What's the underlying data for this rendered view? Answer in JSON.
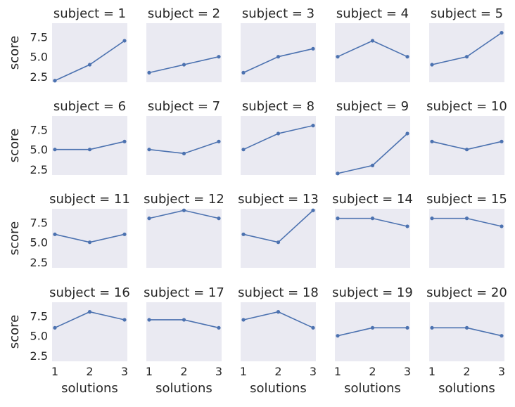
{
  "chart_data": {
    "type": "line",
    "layout": "facet-grid",
    "col_wrap": 5,
    "x_values": [
      1,
      2,
      3
    ],
    "xlabel": "solutions",
    "ylabel": "score",
    "xticks": [
      "1",
      "2",
      "3"
    ],
    "yticks": [
      "2.5",
      "5.0",
      "7.5"
    ],
    "ytick_values": [
      2.5,
      5.0,
      7.5
    ],
    "ylim": [
      1.8,
      9.2
    ],
    "xlim": [
      1,
      3
    ],
    "grid": false,
    "colors": {
      "line": "#4C72B0",
      "panel_background": "#EAEAF2"
    },
    "panels": [
      {
        "title": "subject = 1",
        "values": [
          2,
          4,
          7
        ]
      },
      {
        "title": "subject = 2",
        "values": [
          3,
          4,
          5
        ]
      },
      {
        "title": "subject = 3",
        "values": [
          3,
          5,
          6
        ]
      },
      {
        "title": "subject = 4",
        "values": [
          5,
          7,
          5
        ]
      },
      {
        "title": "subject = 5",
        "values": [
          4,
          5,
          8
        ]
      },
      {
        "title": "subject = 6",
        "values": [
          5,
          5,
          6
        ]
      },
      {
        "title": "subject = 7",
        "values": [
          5,
          4.5,
          6
        ]
      },
      {
        "title": "subject = 8",
        "values": [
          5,
          7,
          8
        ]
      },
      {
        "title": "subject = 9",
        "values": [
          2,
          3,
          7
        ]
      },
      {
        "title": "subject = 10",
        "values": [
          6,
          5,
          6
        ]
      },
      {
        "title": "subject = 11",
        "values": [
          6,
          5,
          6
        ]
      },
      {
        "title": "subject = 12",
        "values": [
          8,
          9,
          8
        ]
      },
      {
        "title": "subject = 13",
        "values": [
          6,
          5,
          9
        ]
      },
      {
        "title": "subject = 14",
        "values": [
          8,
          8,
          7
        ]
      },
      {
        "title": "subject = 15",
        "values": [
          8,
          8,
          7
        ]
      },
      {
        "title": "subject = 16",
        "values": [
          6,
          8,
          7
        ]
      },
      {
        "title": "subject = 17",
        "values": [
          7,
          7,
          6
        ]
      },
      {
        "title": "subject = 18",
        "values": [
          7,
          8,
          6
        ]
      },
      {
        "title": "subject = 19",
        "values": [
          5,
          6,
          6
        ]
      },
      {
        "title": "subject = 20",
        "values": [
          6,
          6,
          5
        ]
      }
    ]
  }
}
